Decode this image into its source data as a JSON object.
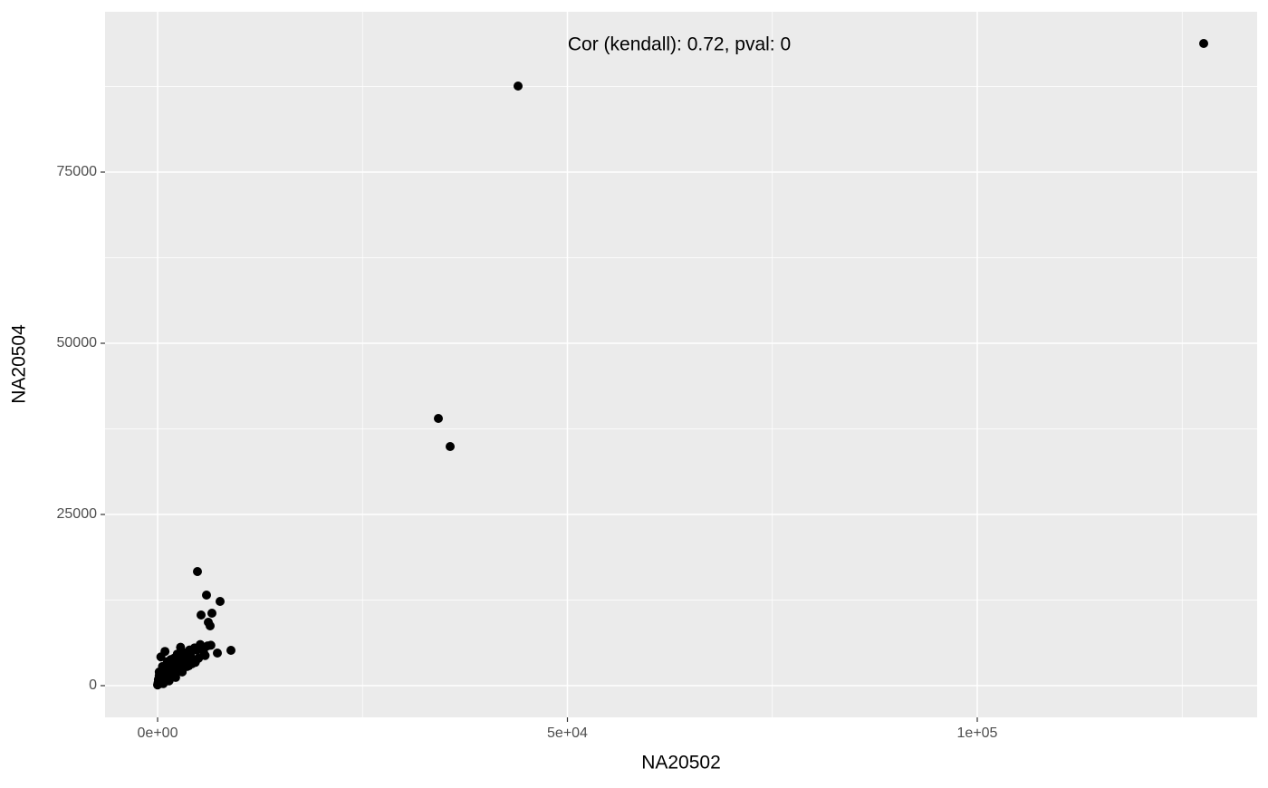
{
  "chart_data": {
    "type": "scatter",
    "annotation": "Cor (kendall): 0.72, pval: 0",
    "x_label": "NA20502",
    "y_label": "NA20504",
    "xlim": [
      -6409,
      134144
    ],
    "ylim": [
      -4630,
      98413
    ],
    "xticks": [
      {
        "value": 0,
        "label": "0e+00"
      },
      {
        "value": 50000,
        "label": "5e+04"
      },
      {
        "value": 100000,
        "label": "1e+05"
      }
    ],
    "yticks": [
      0,
      25000,
      50000,
      75000
    ],
    "x_minor_grid": [
      25000,
      75000,
      125000
    ],
    "y_minor_grid": [
      12500,
      37500,
      62500,
      87500
    ],
    "grid": true,
    "color": "#000000",
    "panel_color": "#ebebeb",
    "x": [
      127624,
      43978,
      34254,
      35691,
      4862,
      5967,
      7624,
      6630,
      5304,
      6188,
      6409,
      8950,
      7293,
      5200,
      4500,
      3900,
      3300,
      2800,
      2400,
      2000,
      1600,
      1200,
      900,
      600,
      400,
      200,
      100,
      50,
      0,
      300,
      700,
      1100,
      1500,
      1900,
      2300,
      2700,
      3100,
      3500,
      4000,
      4400,
      4800,
      5600,
      6100,
      3600,
      2900,
      2100,
      1300,
      800,
      500,
      250,
      150,
      1000,
      1800,
      2600,
      3400,
      4200,
      5000,
      5800,
      6500,
      500,
      1400,
      2200,
      3000,
      3800,
      4600,
      200,
      700,
      1500
    ],
    "y": [
      93783,
      87566,
      39021,
      34921,
      16667,
      13228,
      12302,
      10582,
      10317,
      9259,
      8730,
      5159,
      4762,
      6000,
      5500,
      5200,
      4800,
      5600,
      4600,
      4000,
      3800,
      3500,
      5000,
      2800,
      4200,
      1500,
      900,
      400,
      100,
      600,
      1200,
      1800,
      2200,
      2600,
      3000,
      3300,
      3600,
      4000,
      4500,
      3800,
      5200,
      5000,
      5800,
      2800,
      2500,
      1800,
      1300,
      800,
      500,
      300,
      1000,
      2400,
      3000,
      3800,
      4200,
      3200,
      4000,
      4400,
      5900,
      1600,
      700,
      1200,
      2000,
      2900,
      3400,
      2000,
      300,
      1000
    ]
  }
}
